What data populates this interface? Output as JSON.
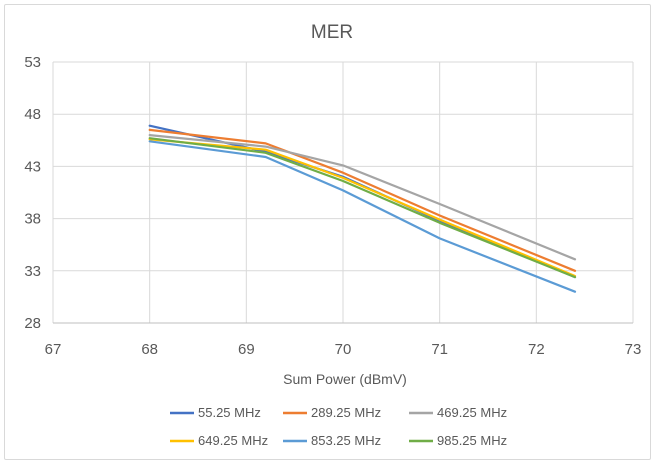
{
  "chart_data": {
    "type": "line",
    "title": "MER",
    "xlabel": "Sum Power (dBmV)",
    "ylabel": "",
    "xlim": [
      67,
      73
    ],
    "ylim": [
      28,
      53
    ],
    "xticks": [
      67,
      68,
      69,
      70,
      71,
      72,
      73
    ],
    "yticks": [
      28,
      33,
      38,
      43,
      48,
      53
    ],
    "grid": true,
    "legend_position": "bottom",
    "x": [
      68,
      69.2,
      70,
      71,
      72.4
    ],
    "series": [
      {
        "name": "55.25 MHz",
        "color": "#4472c4",
        "values": [
          46.9,
          44.4,
          42.0,
          37.8,
          32.4
        ]
      },
      {
        "name": "289.25 MHz",
        "color": "#ed7d31",
        "values": [
          46.5,
          45.2,
          42.4,
          38.3,
          33.0
        ]
      },
      {
        "name": "469.25 MHz",
        "color": "#a5a5a5",
        "values": [
          46.0,
          44.9,
          43.1,
          39.4,
          34.1
        ]
      },
      {
        "name": "649.25 MHz",
        "color": "#ffc000",
        "values": [
          45.6,
          44.6,
          41.9,
          37.9,
          32.5
        ]
      },
      {
        "name": "853.25 MHz",
        "color": "#5b9bd5",
        "values": [
          45.4,
          43.9,
          40.7,
          36.1,
          31.0
        ]
      },
      {
        "name": "985.25 MHz",
        "color": "#70ad47",
        "values": [
          45.7,
          44.3,
          41.6,
          37.6,
          32.4
        ]
      }
    ]
  }
}
